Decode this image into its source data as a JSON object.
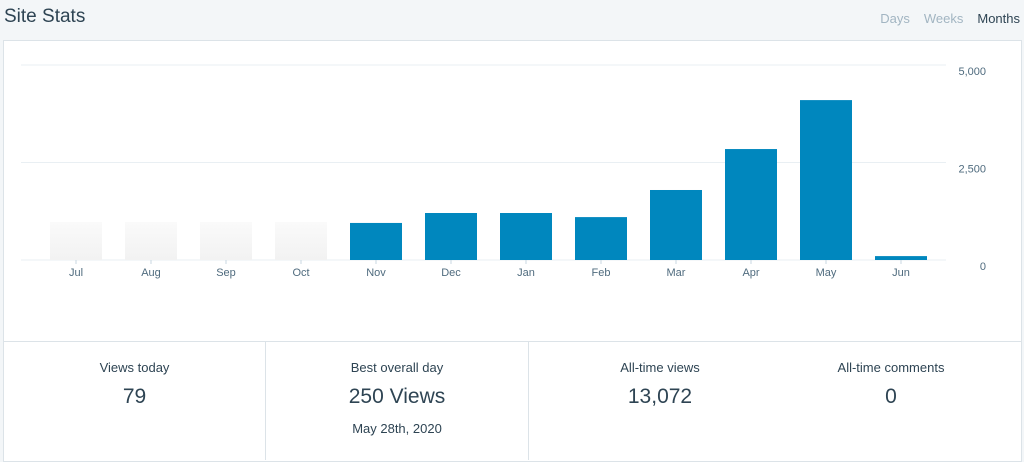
{
  "header": {
    "title": "Site Stats",
    "tabs": [
      "Days",
      "Weeks",
      "Months"
    ]
  },
  "chart_data": {
    "type": "bar",
    "categories": [
      "Jul",
      "Aug",
      "Sep",
      "Oct",
      "Nov",
      "Dec",
      "Jan",
      "Feb",
      "Mar",
      "Apr",
      "May",
      "Jun"
    ],
    "values": [
      null,
      null,
      null,
      null,
      950,
      1205,
      1205,
      1100,
      1795,
      2845,
      4100,
      100
    ],
    "color": "#0087be",
    "ylim": [
      0,
      5000
    ],
    "yticks": [
      0,
      {
        "value": 2500,
        "label": "2,500"
      },
      {
        "value": 5000,
        "label": "5,000"
      }
    ],
    "grid": true
  },
  "stats": [
    {
      "label": "Views today",
      "value": "79"
    },
    {
      "label": "Best overall day",
      "value": "250 Views",
      "note": "May 28th, 2020"
    },
    {
      "label": "All-time views",
      "value": "13,072"
    },
    {
      "label": "All-time comments",
      "value": "0"
    }
  ]
}
